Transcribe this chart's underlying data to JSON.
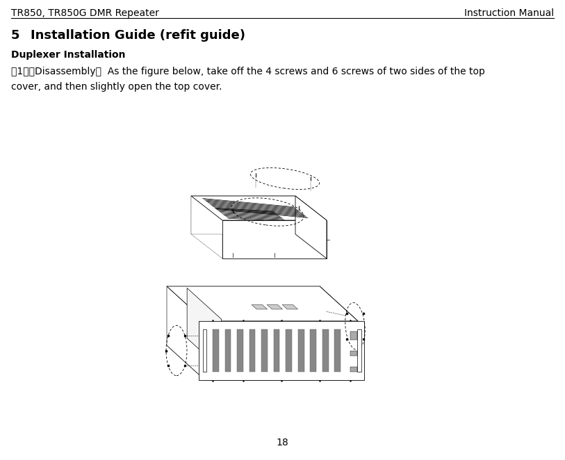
{
  "header_left": "TR850, TR850G DMR Repeater",
  "header_right": "Instruction Manual",
  "section_number": "5",
  "section_title": "    Installation Guide (refit guide)",
  "subsection_title": "Duplexer Installation",
  "body_line1": "（1）　Disassembly：  As the figure below, take off the 4 screws and 6 screws of two sides of the top",
  "body_line2": "cover, and then slightly open the top cover.",
  "page_number": "18",
  "bg_color": "#ffffff",
  "text_color": "#000000",
  "line_color": "#000000",
  "header_fontsize": 10,
  "section_fontsize": 13,
  "subsection_fontsize": 10,
  "body_fontsize": 10,
  "page_width": 8.13,
  "page_height": 6.62,
  "dpi": 100
}
